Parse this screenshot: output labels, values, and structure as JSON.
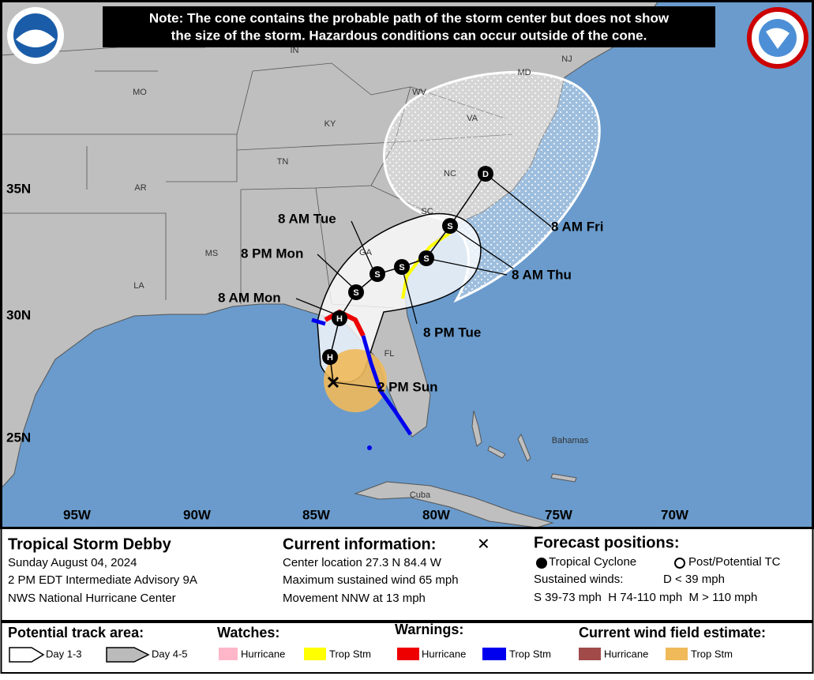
{
  "note": [
    "Note: The cone contains the probable path of the storm center but does not show",
    "the size of the storm. Hazardous conditions can occur outside of the cone."
  ],
  "map": {
    "state_labels": [
      "MO",
      "KY",
      "TN",
      "AR",
      "NC",
      "VA",
      "WV",
      "SC",
      "GA",
      "MS",
      "LA",
      "FL",
      "IN",
      "MD",
      "NJ"
    ],
    "lat_labels": [
      "35N",
      "30N",
      "25N"
    ],
    "lon_labels": [
      "95W",
      "90W",
      "85W",
      "80W",
      "75W",
      "70W"
    ],
    "place_labels": [
      "Bahamas",
      "Cuba"
    ],
    "forecast_labels": [
      "2 PM Sun",
      "8 AM Mon",
      "8 PM Mon",
      "8 AM Tue",
      "8 PM Tue",
      "8 AM Thu",
      "8 AM Fri"
    ],
    "position_markers": [
      "H",
      "H",
      "S",
      "S",
      "S",
      "S",
      "S",
      "D"
    ]
  },
  "info": {
    "title": "Tropical Storm Debby",
    "date": "Sunday August 04, 2024",
    "advisory": "2 PM EDT Intermediate Advisory 9A",
    "agency": "NWS National Hurricane Center",
    "current_heading": "Current information:",
    "current_symbol": "✕",
    "center_location": "Center location 27.3 N 84.4 W",
    "max_wind": "Maximum sustained wind 65 mph",
    "movement": "Movement NNW at 13 mph",
    "forecast_heading": "Forecast positions:",
    "tropical_cyclone": "Tropical Cyclone",
    "post_potential": "Post/Potential TC",
    "sustained_winds": "Sustained winds:",
    "d_range": "D < 39 mph",
    "shm_ranges": "S 39-73 mph  H 74-110 mph  M > 110 mph"
  },
  "legend": {
    "track_heading": "Potential track area:",
    "day13": "Day 1-3",
    "day45": "Day 4-5",
    "watches_heading": "Watches:",
    "watch_hurricane": "Hurricane",
    "watch_tropstorm": "Trop Stm",
    "warnings_heading": "Warnings:",
    "warning_hurricane": "Hurricane",
    "warning_tropstorm": "Trop Stm",
    "wind_heading": "Current wind field estimate:",
    "wind_hurricane": "Hurricane",
    "wind_tropstorm": "Trop Stm"
  }
}
